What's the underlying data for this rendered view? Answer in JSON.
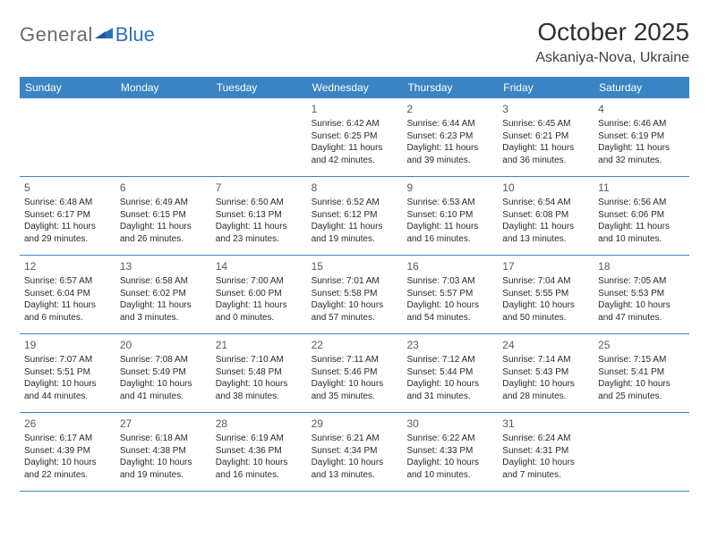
{
  "logo": {
    "text_gray": "General",
    "text_blue": "Blue"
  },
  "header": {
    "title": "October 2025",
    "subtitle": "Askaniya-Nova, Ukraine"
  },
  "colors": {
    "header_bg": "#3b84c4",
    "row_border": "#3b84c4",
    "logo_gray": "#6b6b6b",
    "logo_blue": "#2c72b8"
  },
  "weekdays": [
    "Sunday",
    "Monday",
    "Tuesday",
    "Wednesday",
    "Thursday",
    "Friday",
    "Saturday"
  ],
  "weeks": [
    [
      {
        "day": "",
        "sunrise": "",
        "sunset": "",
        "daylight": ""
      },
      {
        "day": "",
        "sunrise": "",
        "sunset": "",
        "daylight": ""
      },
      {
        "day": "",
        "sunrise": "",
        "sunset": "",
        "daylight": ""
      },
      {
        "day": "1",
        "sunrise": "Sunrise: 6:42 AM",
        "sunset": "Sunset: 6:25 PM",
        "daylight": "Daylight: 11 hours and 42 minutes."
      },
      {
        "day": "2",
        "sunrise": "Sunrise: 6:44 AM",
        "sunset": "Sunset: 6:23 PM",
        "daylight": "Daylight: 11 hours and 39 minutes."
      },
      {
        "day": "3",
        "sunrise": "Sunrise: 6:45 AM",
        "sunset": "Sunset: 6:21 PM",
        "daylight": "Daylight: 11 hours and 36 minutes."
      },
      {
        "day": "4",
        "sunrise": "Sunrise: 6:46 AM",
        "sunset": "Sunset: 6:19 PM",
        "daylight": "Daylight: 11 hours and 32 minutes."
      }
    ],
    [
      {
        "day": "5",
        "sunrise": "Sunrise: 6:48 AM",
        "sunset": "Sunset: 6:17 PM",
        "daylight": "Daylight: 11 hours and 29 minutes."
      },
      {
        "day": "6",
        "sunrise": "Sunrise: 6:49 AM",
        "sunset": "Sunset: 6:15 PM",
        "daylight": "Daylight: 11 hours and 26 minutes."
      },
      {
        "day": "7",
        "sunrise": "Sunrise: 6:50 AM",
        "sunset": "Sunset: 6:13 PM",
        "daylight": "Daylight: 11 hours and 23 minutes."
      },
      {
        "day": "8",
        "sunrise": "Sunrise: 6:52 AM",
        "sunset": "Sunset: 6:12 PM",
        "daylight": "Daylight: 11 hours and 19 minutes."
      },
      {
        "day": "9",
        "sunrise": "Sunrise: 6:53 AM",
        "sunset": "Sunset: 6:10 PM",
        "daylight": "Daylight: 11 hours and 16 minutes."
      },
      {
        "day": "10",
        "sunrise": "Sunrise: 6:54 AM",
        "sunset": "Sunset: 6:08 PM",
        "daylight": "Daylight: 11 hours and 13 minutes."
      },
      {
        "day": "11",
        "sunrise": "Sunrise: 6:56 AM",
        "sunset": "Sunset: 6:06 PM",
        "daylight": "Daylight: 11 hours and 10 minutes."
      }
    ],
    [
      {
        "day": "12",
        "sunrise": "Sunrise: 6:57 AM",
        "sunset": "Sunset: 6:04 PM",
        "daylight": "Daylight: 11 hours and 6 minutes."
      },
      {
        "day": "13",
        "sunrise": "Sunrise: 6:58 AM",
        "sunset": "Sunset: 6:02 PM",
        "daylight": "Daylight: 11 hours and 3 minutes."
      },
      {
        "day": "14",
        "sunrise": "Sunrise: 7:00 AM",
        "sunset": "Sunset: 6:00 PM",
        "daylight": "Daylight: 11 hours and 0 minutes."
      },
      {
        "day": "15",
        "sunrise": "Sunrise: 7:01 AM",
        "sunset": "Sunset: 5:58 PM",
        "daylight": "Daylight: 10 hours and 57 minutes."
      },
      {
        "day": "16",
        "sunrise": "Sunrise: 7:03 AM",
        "sunset": "Sunset: 5:57 PM",
        "daylight": "Daylight: 10 hours and 54 minutes."
      },
      {
        "day": "17",
        "sunrise": "Sunrise: 7:04 AM",
        "sunset": "Sunset: 5:55 PM",
        "daylight": "Daylight: 10 hours and 50 minutes."
      },
      {
        "day": "18",
        "sunrise": "Sunrise: 7:05 AM",
        "sunset": "Sunset: 5:53 PM",
        "daylight": "Daylight: 10 hours and 47 minutes."
      }
    ],
    [
      {
        "day": "19",
        "sunrise": "Sunrise: 7:07 AM",
        "sunset": "Sunset: 5:51 PM",
        "daylight": "Daylight: 10 hours and 44 minutes."
      },
      {
        "day": "20",
        "sunrise": "Sunrise: 7:08 AM",
        "sunset": "Sunset: 5:49 PM",
        "daylight": "Daylight: 10 hours and 41 minutes."
      },
      {
        "day": "21",
        "sunrise": "Sunrise: 7:10 AM",
        "sunset": "Sunset: 5:48 PM",
        "daylight": "Daylight: 10 hours and 38 minutes."
      },
      {
        "day": "22",
        "sunrise": "Sunrise: 7:11 AM",
        "sunset": "Sunset: 5:46 PM",
        "daylight": "Daylight: 10 hours and 35 minutes."
      },
      {
        "day": "23",
        "sunrise": "Sunrise: 7:12 AM",
        "sunset": "Sunset: 5:44 PM",
        "daylight": "Daylight: 10 hours and 31 minutes."
      },
      {
        "day": "24",
        "sunrise": "Sunrise: 7:14 AM",
        "sunset": "Sunset: 5:43 PM",
        "daylight": "Daylight: 10 hours and 28 minutes."
      },
      {
        "day": "25",
        "sunrise": "Sunrise: 7:15 AM",
        "sunset": "Sunset: 5:41 PM",
        "daylight": "Daylight: 10 hours and 25 minutes."
      }
    ],
    [
      {
        "day": "26",
        "sunrise": "Sunrise: 6:17 AM",
        "sunset": "Sunset: 4:39 PM",
        "daylight": "Daylight: 10 hours and 22 minutes."
      },
      {
        "day": "27",
        "sunrise": "Sunrise: 6:18 AM",
        "sunset": "Sunset: 4:38 PM",
        "daylight": "Daylight: 10 hours and 19 minutes."
      },
      {
        "day": "28",
        "sunrise": "Sunrise: 6:19 AM",
        "sunset": "Sunset: 4:36 PM",
        "daylight": "Daylight: 10 hours and 16 minutes."
      },
      {
        "day": "29",
        "sunrise": "Sunrise: 6:21 AM",
        "sunset": "Sunset: 4:34 PM",
        "daylight": "Daylight: 10 hours and 13 minutes."
      },
      {
        "day": "30",
        "sunrise": "Sunrise: 6:22 AM",
        "sunset": "Sunset: 4:33 PM",
        "daylight": "Daylight: 10 hours and 10 minutes."
      },
      {
        "day": "31",
        "sunrise": "Sunrise: 6:24 AM",
        "sunset": "Sunset: 4:31 PM",
        "daylight": "Daylight: 10 hours and 7 minutes."
      },
      {
        "day": "",
        "sunrise": "",
        "sunset": "",
        "daylight": ""
      }
    ]
  ]
}
